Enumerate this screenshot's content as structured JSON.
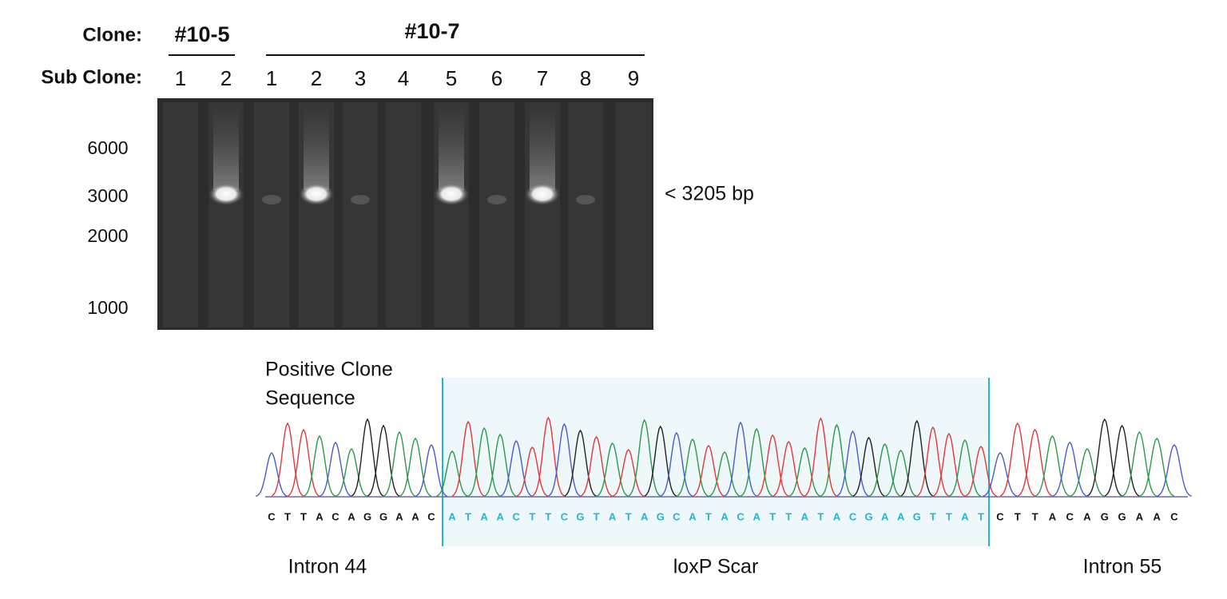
{
  "gel": {
    "clone_label": "Clone:",
    "clones": [
      "#10-5",
      "#10-7"
    ],
    "subclone_label": "Sub Clone:",
    "lanes": [
      "1",
      "2",
      "1",
      "2",
      "3",
      "4",
      "5",
      "6",
      "7",
      "8",
      "9"
    ],
    "ladder": [
      "6000",
      "3000",
      "2000",
      "1000"
    ],
    "band_annotation": "< 3205 bp"
  },
  "sequence": {
    "title_lines": [
      "Positive Clone",
      "Sequence"
    ],
    "regions": [
      {
        "bases": "CTTACAGGAAC",
        "label": "Intron 44"
      },
      {
        "bases": "ATAACTTCGTATAGCATACATTATACGAAGTTAT",
        "label": "loxP Scar"
      },
      {
        "bases": "CTTACAGGAAC",
        "label": "Intron 55"
      }
    ]
  }
}
